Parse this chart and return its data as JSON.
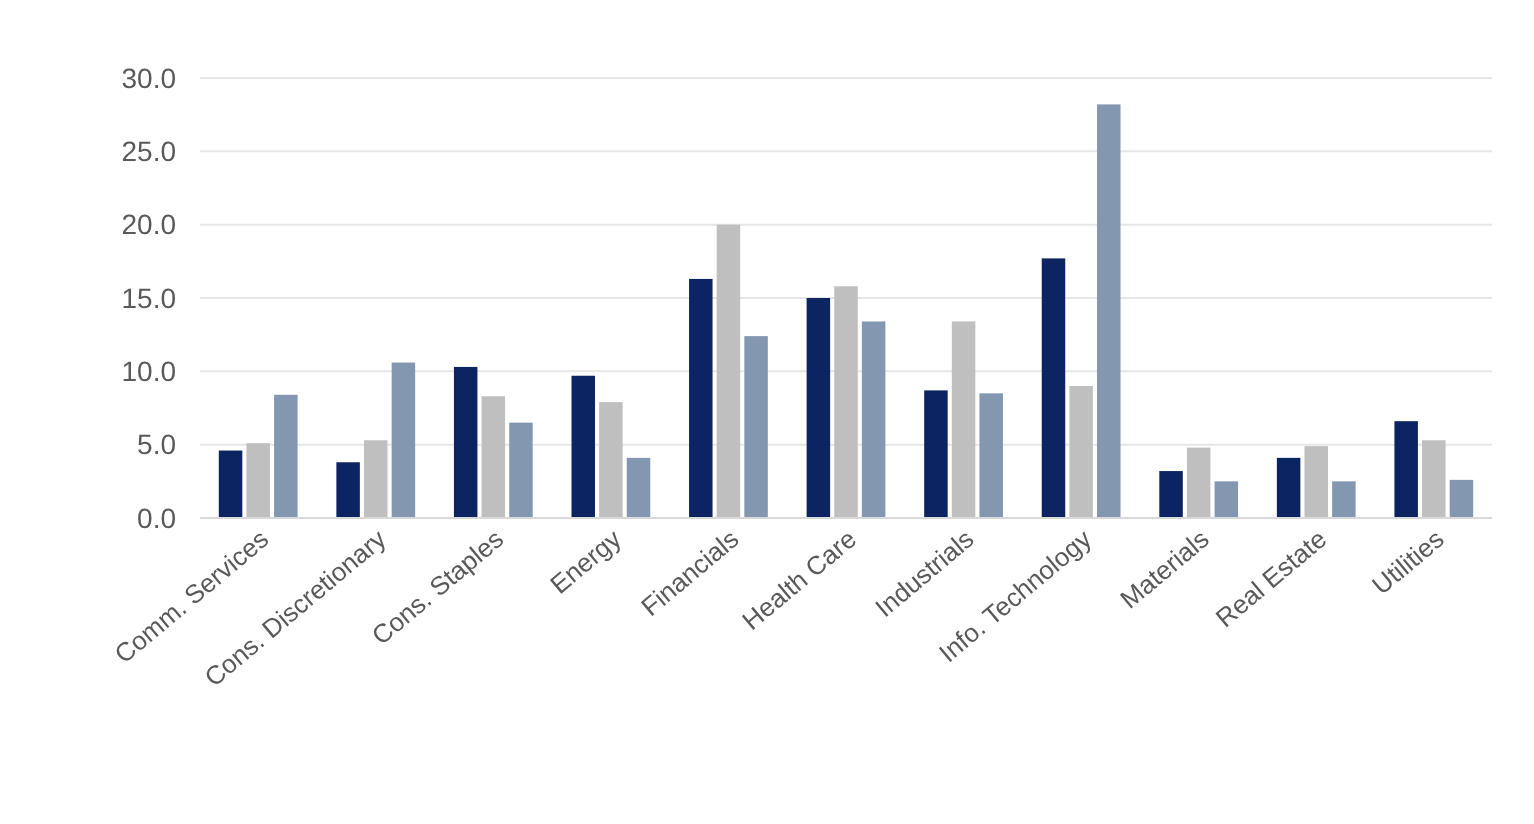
{
  "chart_data": {
    "type": "bar",
    "categories": [
      "Comm. Services",
      "Cons. Discretionary",
      "Cons. Staples",
      "Energy",
      "Financials",
      "Health Care",
      "Industrials",
      "Info. Technology",
      "Materials",
      "Real Estate",
      "Utilities"
    ],
    "series": [
      {
        "color": "#0c2461",
        "values": [
          4.6,
          3.8,
          10.3,
          9.7,
          16.3,
          15.0,
          8.7,
          17.7,
          3.2,
          4.1,
          6.6
        ]
      },
      {
        "color": "#bfbfbf",
        "values": [
          5.1,
          5.3,
          8.3,
          7.9,
          20.0,
          15.8,
          13.4,
          9.0,
          4.8,
          4.9,
          5.3
        ]
      },
      {
        "color": "#8497b0",
        "values": [
          8.4,
          10.6,
          6.5,
          4.1,
          12.4,
          13.4,
          8.5,
          28.2,
          2.5,
          2.5,
          2.6
        ]
      }
    ],
    "ylim": [
      0,
      30
    ],
    "yticks": [
      {
        "value": 0,
        "label": "0.0"
      },
      {
        "value": 5,
        "label": "5.0"
      },
      {
        "value": 10,
        "label": "10.0"
      },
      {
        "value": 15,
        "label": "15.0"
      },
      {
        "value": 20,
        "label": "20.0"
      },
      {
        "value": 25,
        "label": "25.0"
      },
      {
        "value": 30,
        "label": "30.0"
      }
    ],
    "grid": "y"
  }
}
